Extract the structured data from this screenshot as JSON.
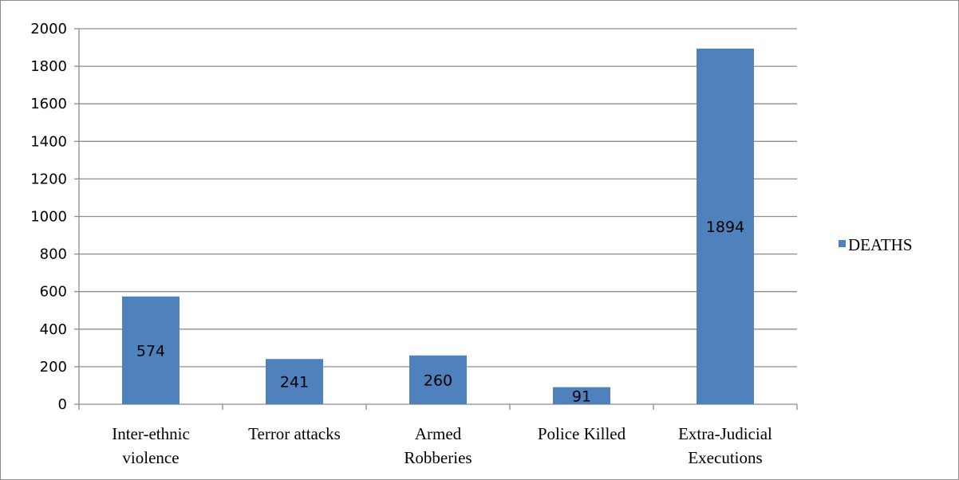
{
  "chart_data": {
    "type": "bar",
    "title": "",
    "xlabel": "",
    "ylabel": "",
    "categories": [
      [
        "Inter-ethnic",
        "violence"
      ],
      [
        "Terror attacks"
      ],
      [
        "Armed",
        "Robberies"
      ],
      [
        "Police Killed"
      ],
      [
        "Extra-Judicial",
        "Executions"
      ]
    ],
    "series": [
      {
        "name": "DEATHS",
        "color": "#4f81bd",
        "values": [
          574,
          241,
          260,
          91,
          1894
        ]
      }
    ],
    "data_labels": [
      "574",
      "241",
      "260",
      "91",
      "1894"
    ],
    "ylim": [
      0,
      2000
    ],
    "y_ticks": [
      0,
      200,
      400,
      600,
      800,
      1000,
      1200,
      1400,
      1600,
      1800,
      2000
    ],
    "grid": true,
    "legend": {
      "placement": "right",
      "entries": [
        "DEATHS"
      ]
    }
  }
}
